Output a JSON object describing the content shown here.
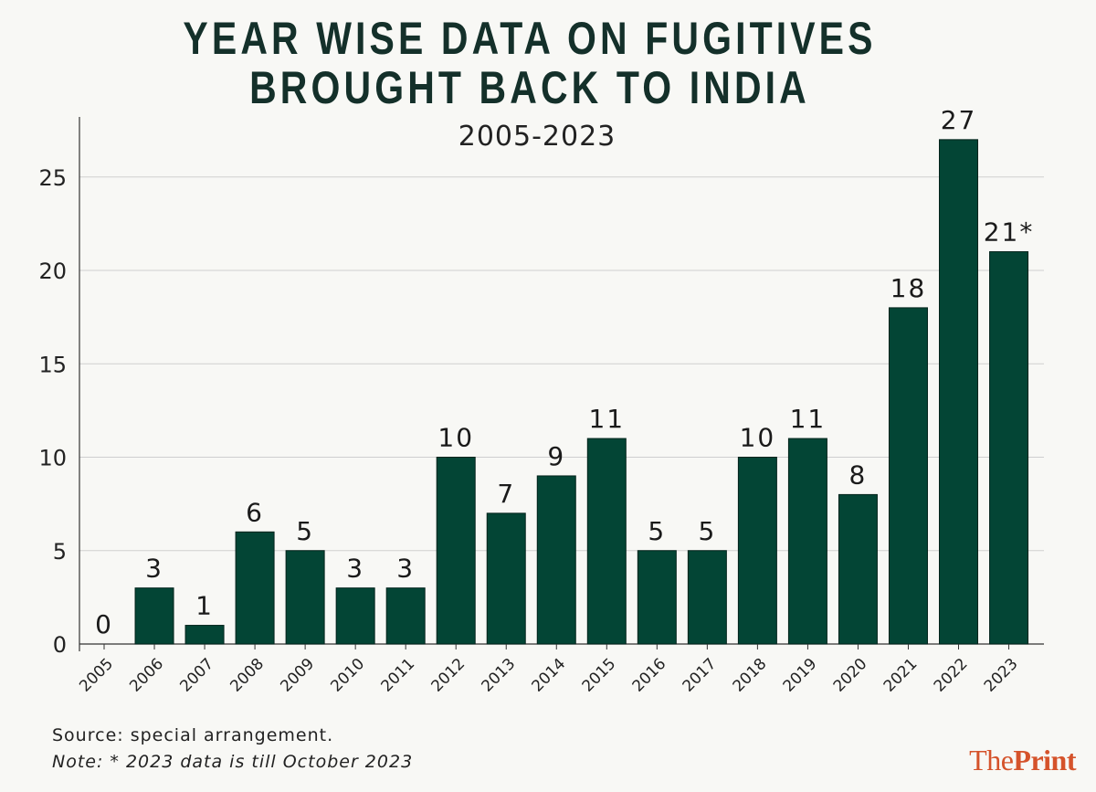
{
  "header": {
    "title_line1": "YEAR WISE DATA ON FUGITIVES",
    "title_line2": "BROUGHT BACK TO INDIA",
    "subtitle": "2005-2023"
  },
  "footer": {
    "source": "Source: special arrangement.",
    "note": "Note: * 2023 data is till October 2023",
    "logo_part1": "The",
    "logo_part2": "Print"
  },
  "colors": {
    "bar": "#034535",
    "grid": "#cfcfcf",
    "axis": "#333333",
    "logo": "#d5532b"
  },
  "chart_data": {
    "type": "bar",
    "title": "YEAR WISE DATA ON FUGITIVES BROUGHT BACK TO INDIA",
    "subtitle": "2005-2023",
    "xlabel": "",
    "ylabel": "",
    "categories": [
      "2005",
      "2006",
      "2007",
      "2008",
      "2009",
      "2010",
      "2011",
      "2012",
      "2013",
      "2014",
      "2015",
      "2016",
      "2017",
      "2018",
      "2019",
      "2020",
      "2021",
      "2022",
      "2023"
    ],
    "values": [
      0,
      3,
      1,
      6,
      5,
      3,
      3,
      10,
      7,
      9,
      11,
      5,
      5,
      10,
      11,
      8,
      18,
      27,
      21
    ],
    "data_labels": [
      "0",
      "3",
      "1",
      "6",
      "5",
      "3",
      "3",
      "10",
      "7",
      "9",
      "11",
      "5",
      "5",
      "10",
      "11",
      "8",
      "18",
      "27",
      "21*"
    ],
    "ylim": [
      0,
      28
    ],
    "yticks": [
      0,
      5,
      10,
      15,
      20,
      25
    ],
    "grid": true,
    "legend": "none"
  }
}
